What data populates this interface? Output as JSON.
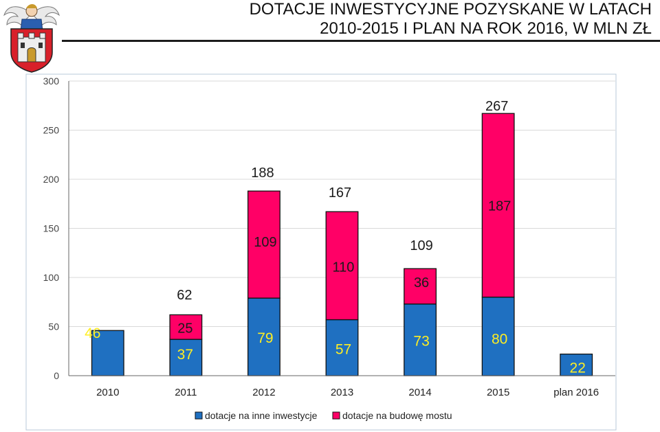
{
  "header": {
    "title_line1": "DOTACJE INWESTYCYJNE POZYSKANE  W LATACH",
    "title_line2": "2010-2015  I PLAN NA ROK 2016, W MLN ZŁ",
    "logo_icon": "coat-of-arms-icon"
  },
  "chart_data": {
    "type": "bar",
    "stacked": true,
    "title": "DOTACJE INWESTYCYJNE POZYSKANE  W LATACH 2010-2015  I PLAN NA ROK 2016, W MLN ZŁ",
    "categories": [
      "2010",
      "2011",
      "2012",
      "2013",
      "2014",
      "2015",
      "plan 2016"
    ],
    "series": [
      {
        "name": "dotacje na inne inwestycje",
        "color": "#1f70c1",
        "values": [
          46,
          37,
          79,
          57,
          73,
          80,
          22
        ]
      },
      {
        "name": "dotacje na budowę mostu",
        "color": "#ff0066",
        "values": [
          null,
          25,
          109,
          110,
          36,
          187,
          null
        ]
      }
    ],
    "series_labels": [
      [
        "46",
        "37",
        "79",
        "57",
        "73",
        "80",
        "22"
      ],
      [
        "",
        "25",
        "109",
        "110",
        "36",
        "187",
        ""
      ]
    ],
    "totals": [
      "",
      "62",
      "188",
      "167",
      "109",
      "267",
      ""
    ],
    "ylim": [
      0,
      300
    ],
    "yticks": [
      "0",
      "50",
      "100",
      "150",
      "200",
      "250",
      "300"
    ],
    "grid": true,
    "legend_position": "bottom"
  }
}
